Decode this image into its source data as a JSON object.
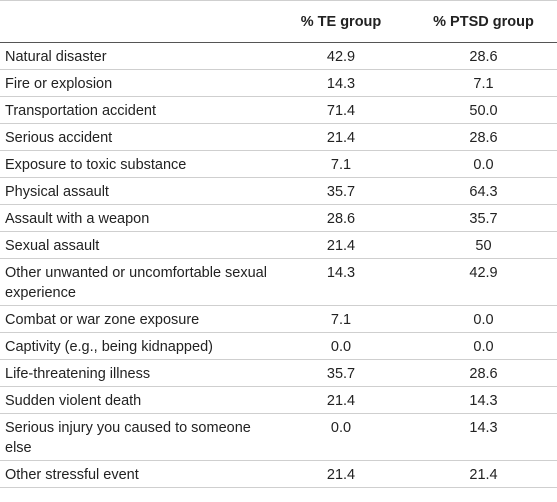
{
  "table": {
    "headers": [
      "",
      "% TE group",
      "% PTSD group"
    ],
    "rows": [
      {
        "label": "Natural disaster",
        "te": "42.9",
        "ptsd": "28.6"
      },
      {
        "label": "Fire or explosion",
        "te": "14.3",
        "ptsd": "7.1"
      },
      {
        "label": "Transportation accident",
        "te": "71.4",
        "ptsd": "50.0"
      },
      {
        "label": "Serious accident",
        "te": "21.4",
        "ptsd": "28.6"
      },
      {
        "label": "Exposure to toxic substance",
        "te": "7.1",
        "ptsd": "0.0"
      },
      {
        "label": "Physical assault",
        "te": "35.7",
        "ptsd": "64.3"
      },
      {
        "label": "Assault with a weapon",
        "te": "28.6",
        "ptsd": "35.7"
      },
      {
        "label": "Sexual assault",
        "te": "21.4",
        "ptsd": "50"
      },
      {
        "label": "Other unwanted or uncomfortable sexual experience",
        "te": "14.3",
        "ptsd": "42.9"
      },
      {
        "label": "Combat or war zone exposure",
        "te": "7.1",
        "ptsd": "0.0"
      },
      {
        "label": "Captivity (e.g., being kidnapped)",
        "te": "0.0",
        "ptsd": "0.0"
      },
      {
        "label": "Life-threatening illness",
        "te": "35.7",
        "ptsd": "28.6"
      },
      {
        "label": "Sudden violent death",
        "te": "21.4",
        "ptsd": "14.3"
      },
      {
        "label": "Serious injury you caused to someone else",
        "te": "0.0",
        "ptsd": "14.3"
      },
      {
        "label": "Other stressful event",
        "te": "21.4",
        "ptsd": "21.4"
      }
    ]
  }
}
